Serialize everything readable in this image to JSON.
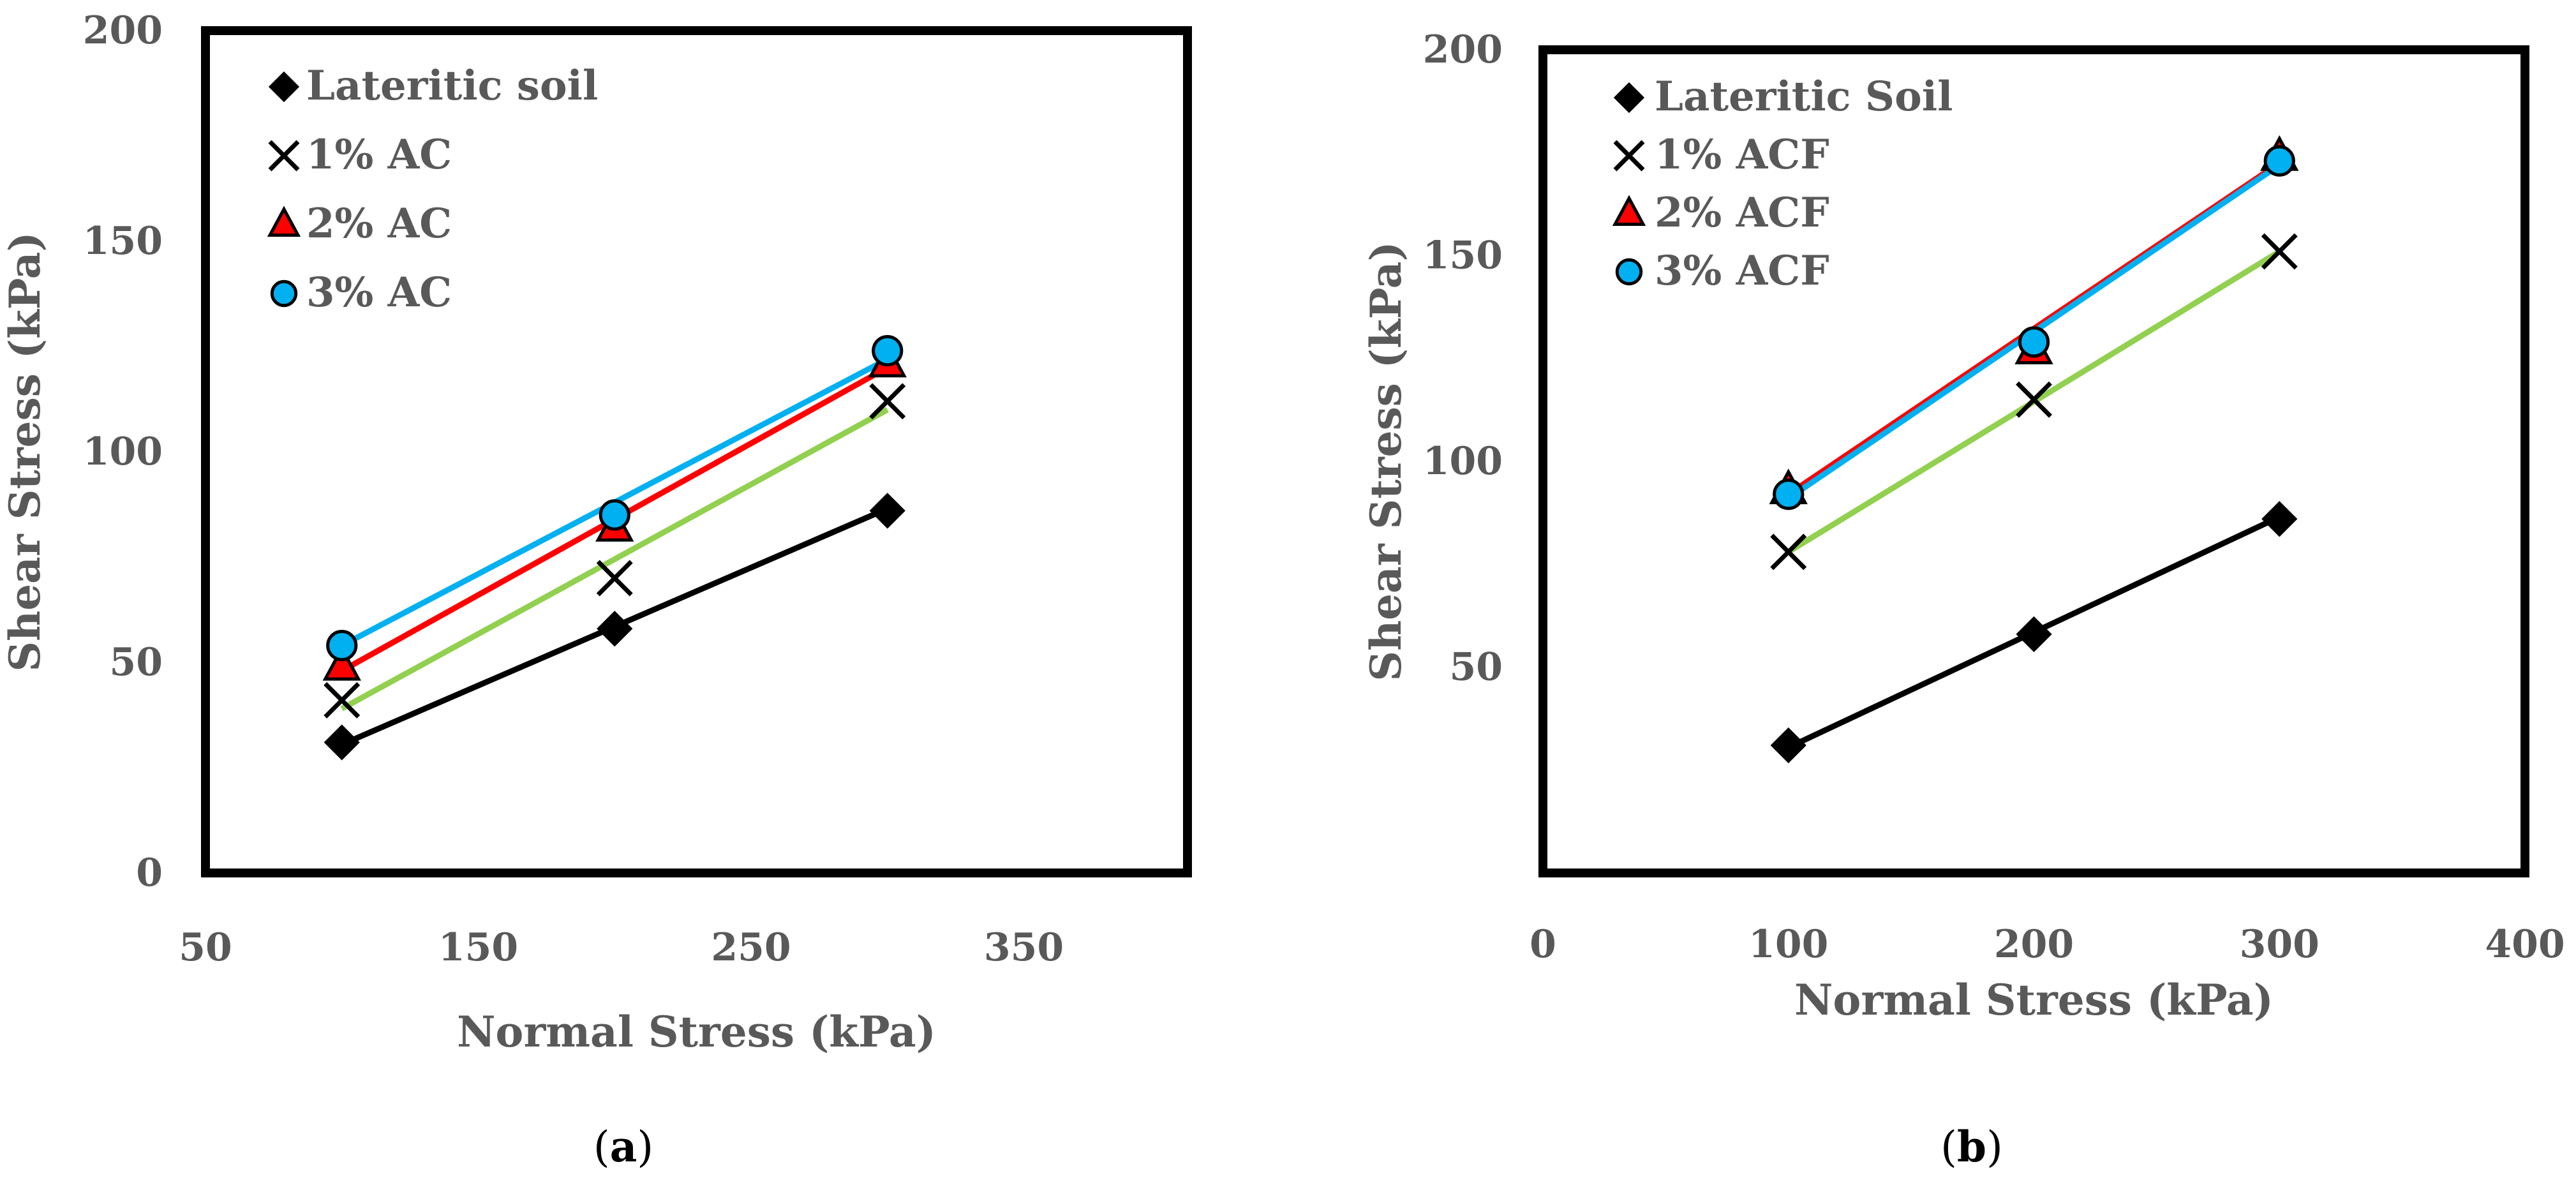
{
  "chart_data": [
    {
      "type": "scatter",
      "caption_letter": "a",
      "xlabel": "Normal Stress (kPa)",
      "ylabel": "Shear Stress (kPa)",
      "xlim": [
        50,
        410
      ],
      "ylim": [
        0,
        200
      ],
      "xticks": [
        50,
        150,
        250,
        350
      ],
      "yticks": [
        0,
        50,
        100,
        150,
        200
      ],
      "x": [
        100,
        200,
        300
      ],
      "legend_position": "top-left",
      "series": [
        {
          "name": "Lateritic soil",
          "marker": "diamond",
          "line_color": "#000000",
          "marker_fill": "#000000",
          "values": [
            31,
            58,
            86
          ],
          "fit": [
            30.5,
            86.5
          ]
        },
        {
          "name": "1% AC",
          "marker": "x",
          "line_color": "#92d050",
          "marker_fill": "#000000",
          "values": [
            41,
            70,
            112
          ],
          "fit": [
            39,
            110
          ]
        },
        {
          "name": "2% AC",
          "marker": "triangle",
          "line_color": "#ff0000",
          "marker_fill": "#ff0000",
          "values": [
            49,
            82,
            121
          ],
          "fit": [
            48,
            120
          ]
        },
        {
          "name": "3% AC",
          "marker": "circle",
          "line_color": "#00b0f0",
          "marker_fill": "#00b0f0",
          "values": [
            54,
            85,
            124
          ],
          "fit": [
            54,
            122
          ]
        }
      ]
    },
    {
      "type": "scatter",
      "caption_letter": "b",
      "xlabel": "Normal Stress (kPa)",
      "ylabel": "Shear Stress (kPa)",
      "xlim": [
        0,
        400
      ],
      "ylim": [
        0,
        200
      ],
      "xticks": [
        0,
        100,
        200,
        300,
        400
      ],
      "yticks": [
        50,
        100,
        150,
        200
      ],
      "x": [
        100,
        200,
        300
      ],
      "legend_position": "top-left",
      "series": [
        {
          "name": "Lateritic Soil",
          "marker": "diamond",
          "line_color": "#000000",
          "marker_fill": "#000000",
          "values": [
            31,
            58,
            86
          ],
          "fit": [
            30.5,
            86.5
          ]
        },
        {
          "name": "1% ACF",
          "marker": "x",
          "line_color": "#92d050",
          "marker_fill": "#000000",
          "values": [
            78,
            115,
            151
          ],
          "fit": [
            78,
            151
          ]
        },
        {
          "name": "2% ACF",
          "marker": "triangle",
          "line_color": "#ff0000",
          "marker_fill": "#ff0000",
          "values": [
            93,
            127,
            174
          ],
          "fit": [
            92,
            172.5
          ]
        },
        {
          "name": "3% ACF",
          "marker": "circle",
          "line_color": "#00b0f0",
          "marker_fill": "#00b0f0",
          "values": [
            92,
            129,
            173
          ],
          "fit": [
            91,
            172
          ]
        }
      ]
    }
  ]
}
